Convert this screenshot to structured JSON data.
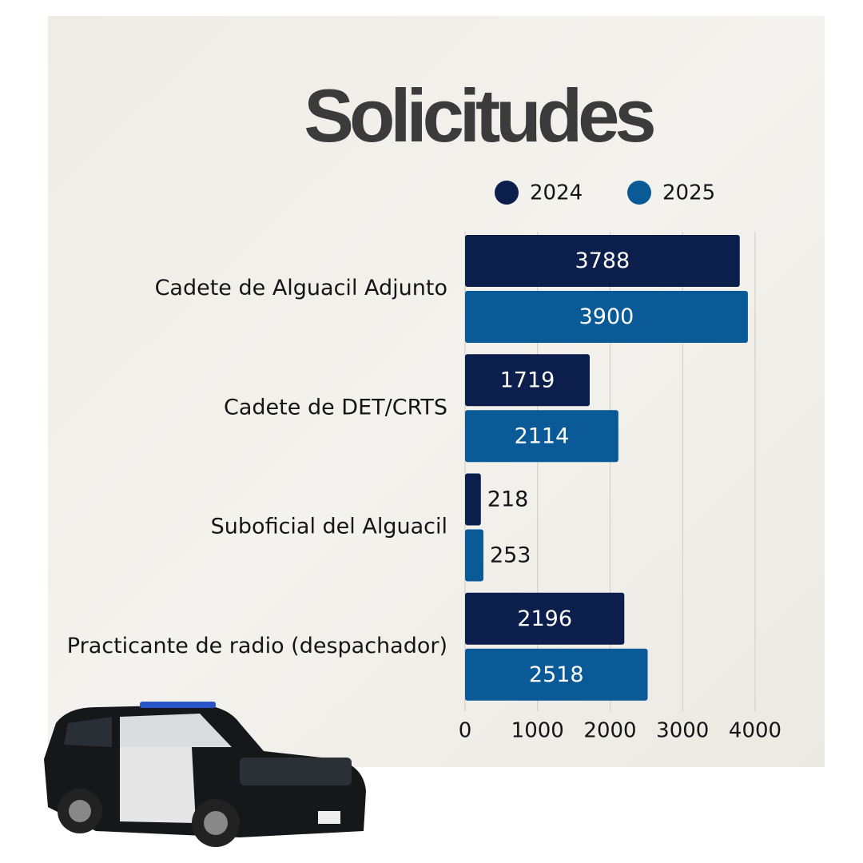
{
  "chart_data": {
    "type": "bar",
    "orientation": "horizontal",
    "title": "Solicitudes",
    "categories": [
      "Cadete de Alguacil Adjunto",
      "Cadete de DET/CRTS",
      "Suboficial del Alguacil",
      "Practicante de radio (despachador)"
    ],
    "series": [
      {
        "name": "2024",
        "color": "#0c1f4c",
        "values": [
          3788,
          1719,
          218,
          2196
        ]
      },
      {
        "name": "2025",
        "color": "#0a5a97",
        "values": [
          3900,
          2114,
          253,
          2518
        ]
      }
    ],
    "xlim": [
      0,
      4000
    ],
    "xticks": [
      0,
      1000,
      2000,
      3000,
      4000
    ],
    "grid": true
  }
}
